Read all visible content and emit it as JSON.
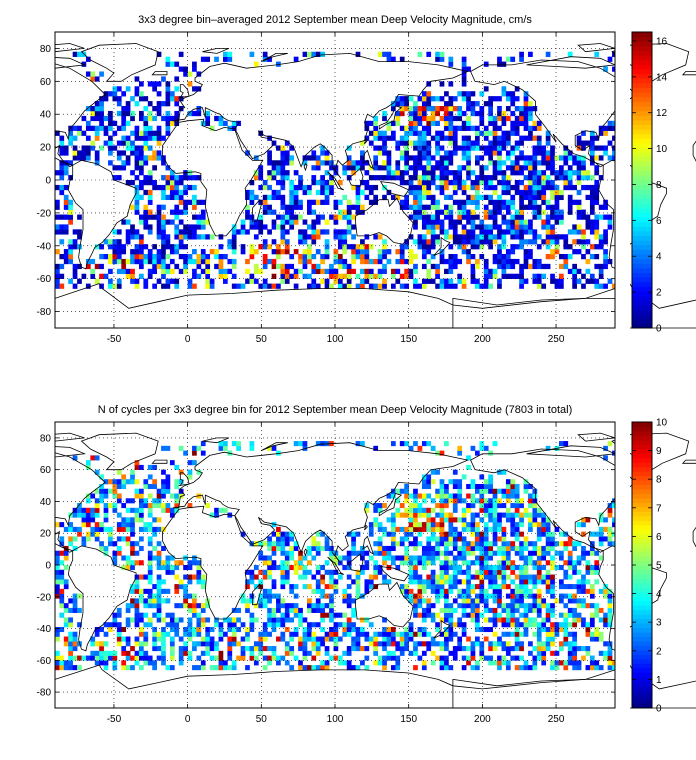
{
  "chart_data": [
    {
      "type": "heatmap",
      "title": "3x3 degree bin–averaged 2012 September mean Deep Velocity Magnitude, cm/s",
      "xlabel": "",
      "ylabel": "",
      "xlim": [
        -90,
        290
      ],
      "ylim": [
        -90,
        90
      ],
      "x_ticks": [
        -50,
        0,
        50,
        100,
        150,
        200,
        250
      ],
      "y_ticks": [
        -80,
        -60,
        -40,
        -20,
        0,
        20,
        40,
        60,
        80
      ],
      "grid": true,
      "bin_size_deg": 3,
      "colormap": "jet",
      "colorbar": {
        "min": 0,
        "max": 16.5,
        "ticks": [
          0,
          2,
          4,
          6,
          8,
          10,
          12,
          14,
          16
        ]
      },
      "high_value_regions": [
        {
          "lon": [
            40,
            150
          ],
          "lat": [
            -60,
            -40
          ],
          "value_range": [
            8,
            16
          ]
        },
        {
          "lon": [
            -70,
            -30
          ],
          "lat": [
            -60,
            -45
          ],
          "value_range": [
            8,
            16
          ]
        },
        {
          "lon": [
            140,
            180
          ],
          "lat": [
            30,
            45
          ],
          "value_range": [
            8,
            16
          ]
        }
      ],
      "typical_value": 2
    },
    {
      "type": "heatmap",
      "title": "N of cycles per 3x3 degree bin for 2012 September mean Deep Velocity Magnitude (7803 in total)",
      "xlabel": "",
      "ylabel": "",
      "xlim": [
        -90,
        290
      ],
      "ylim": [
        -90,
        90
      ],
      "x_ticks": [
        -50,
        0,
        50,
        100,
        150,
        200,
        250
      ],
      "y_ticks": [
        -80,
        -60,
        -40,
        -20,
        0,
        20,
        40,
        60,
        80
      ],
      "grid": true,
      "bin_size_deg": 3,
      "colormap": "jet",
      "colorbar": {
        "min": 0,
        "max": 10,
        "ticks": [
          0,
          1,
          2,
          3,
          4,
          5,
          6,
          7,
          8,
          9,
          10
        ]
      },
      "total_cycles": 7803,
      "high_value_regions": [
        {
          "lon": [
            140,
            180
          ],
          "lat": [
            20,
            45
          ],
          "value_range": [
            7,
            10
          ]
        }
      ],
      "typical_value": 2
    }
  ]
}
